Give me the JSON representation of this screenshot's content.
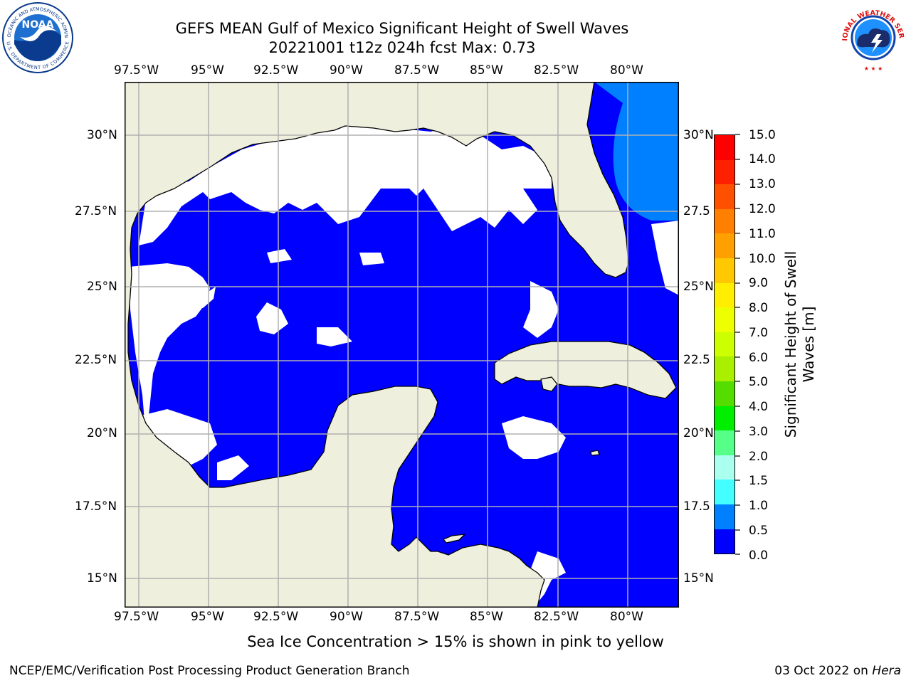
{
  "header": {
    "title_line1": "GEFS MEAN Gulf of Mexico Significant Height of Swell Waves",
    "title_line2": "20221001 t12z 024h fcst   Max: 0.73"
  },
  "logos": {
    "noaa_text": "NOAA",
    "noaa_ring_top": "NATIONAL OCEANIC AND ATMOSPHERIC ADMINISTRATION",
    "noaa_ring_bottom": "U.S. DEPARTMENT OF COMMERCE",
    "nws_ring": "NATIONAL WEATHER SERVICE"
  },
  "map": {
    "lon_labels": [
      "97.5°W",
      "95°W",
      "92.5°W",
      "90°W",
      "87.5°W",
      "85°W",
      "82.5°W",
      "80°W"
    ],
    "lat_labels": [
      "30°N",
      "27.5°N",
      "25°N",
      "22.5°N",
      "20°N",
      "17.5°N",
      "15°N"
    ],
    "lat_labels_right": [
      "30°N",
      "27.5",
      "25°N",
      "22.5",
      "20°N",
      "17.5",
      "15°N"
    ],
    "lon_range": [
      -98,
      -78.2
    ],
    "lat_range": [
      14,
      31.7
    ],
    "colors": {
      "land": "#efefde",
      "swell_0_0_5": "#0000ff",
      "swell_0_5_1_0": "#0080ff",
      "no_data": "#ffffff"
    }
  },
  "colorbar": {
    "label": "Significant Height of Swell Waves [m]",
    "ticks": [
      "15.0",
      "14.0",
      "13.0",
      "12.0",
      "11.0",
      "10.0",
      "9.0",
      "8.0",
      "7.0",
      "6.0",
      "5.0",
      "4.0",
      "3.0",
      "2.0",
      "1.5",
      "1.0",
      "0.5",
      "0.0"
    ],
    "colors": [
      "#ff0000",
      "#ff2000",
      "#ff5000",
      "#ff8000",
      "#ffa000",
      "#ffc800",
      "#ffee00",
      "#eeff00",
      "#ccff00",
      "#aaee00",
      "#55dd00",
      "#00ee00",
      "#55ff88",
      "#aaffee",
      "#44ffff",
      "#00eeee",
      "#0080ff",
      "#0000ff"
    ]
  },
  "footer": {
    "note": "Sea Ice Concentration > 15% is shown in pink to yellow",
    "branch": "NCEP/EMC/Verification Post Processing Product Generation Branch",
    "date": "03 Oct 2022 on ",
    "machine": "Hera"
  }
}
